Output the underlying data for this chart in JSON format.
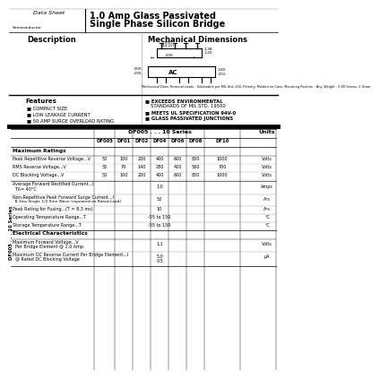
{
  "title_main": "1.0 Amp Glass Passivated",
  "title_sub": "Single Phase Silicon Bridge",
  "series_label": "DF005 . . . 10 Series",
  "description_title": "Description",
  "mech_title": "Mechanical Dimensions",
  "features_title": "Features",
  "features": [
    "COMPACT SIZE",
    "LOW LEAKAGE CURRENT",
    "50 AMP SURGE OVERLOAD RATING"
  ],
  "right_features_line1": "EXCEEDS ENVIRONMENTAL",
  "right_features_line2": "STANDARDS OF MIL STD. 19500",
  "right_features_line3": "MEETS UL SPECIFICATION 94V-0",
  "right_features_line4": "GLASS PASSIVATED JUNCTIONS",
  "table_col_headers": [
    "DF005",
    "DF01",
    "DF02",
    "DF04",
    "DF06",
    "DF08",
    "DF10"
  ],
  "table_section1": "Maximum Ratings",
  "row1_label": "Peak Repetitive Reverse Voltage...V",
  "row1_vals": [
    "50",
    "100",
    "200",
    "400",
    "600",
    "800",
    "1000"
  ],
  "row1_unit": "Volts",
  "row2_label": "RMS Reverse Voltage...V",
  "row2_vals": [
    "35",
    "70",
    "140",
    "280",
    "420",
    "560",
    "700"
  ],
  "row2_unit": "Volts",
  "row3_label": "DC Blocking Voltage...V",
  "row3_vals": [
    "50",
    "100",
    "200",
    "400",
    "600",
    "800",
    "1000"
  ],
  "row3_unit": "Volts",
  "row4_label": "Average Forward Rectified Current...I",
  "row4_label2": "  TA= 40°C",
  "row4_val": "1.0",
  "row4_unit": "Amps",
  "row5_label": "Non-Repetitive Peak Forward Surge Current...I",
  "row5_label2": "  8.3ms Single 1/2 Sine Wave (repeated on Rated Load)",
  "row5_val": "50",
  "row5_unit": "A²s",
  "row6_label": "Peak Rating for Fusing...(T = 8.3 ms)",
  "row6_val": "10",
  "row6_unit": "A²s",
  "row7_label": "Operating Temperature Range...T",
  "row7_val": "-55 to 150",
  "row7_unit": "°C",
  "row8_label": "Storage Temperature Range...T",
  "row8_val": "-55 to 150",
  "row8_unit": "°C",
  "table_section2": "Electrical Characteristics",
  "row9_label": "Maximum Forward Voltage...V",
  "row9_label2": "  Per Bridge Element @ 1.0 Amp",
  "row9_val": "1.1",
  "row9_unit": "Volts",
  "row10_label": "Maximum DC Reverse Current Per Bridge Element...I",
  "row10_label2": "  @ Rated DC Blocking Voltage",
  "row10_val1": "5.0",
  "row10_val2": "0.5",
  "row10_unit": "µA",
  "mech_note": "Mechanical Data: Terminal Leads - Solderable per MIL-Std. 202, Polarity: Molded on Case. Mounting Position - Any. Weight - 0.68 Grams, 1 Gram.",
  "bg_color": "#ffffff"
}
